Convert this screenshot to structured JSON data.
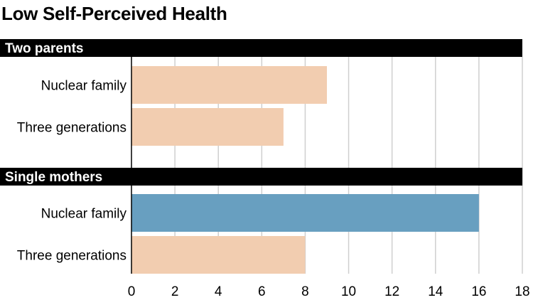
{
  "chart_data": {
    "type": "bar",
    "orientation": "horizontal",
    "title": "Low Self-Perceived Health",
    "xlim": [
      0,
      18
    ],
    "x_ticks": [
      0,
      2,
      4,
      6,
      8,
      10,
      12,
      14,
      16,
      18
    ],
    "grid": true,
    "groups": [
      {
        "label": "Two parents",
        "bars": [
          {
            "category": "Nuclear family",
            "value": 9,
            "color": "#f2cdb0"
          },
          {
            "category": "Three generations",
            "value": 7,
            "color": "#f2cdb0"
          }
        ]
      },
      {
        "label": "Single mothers",
        "bars": [
          {
            "category": "Nuclear family",
            "value": 16,
            "color": "#689fc0"
          },
          {
            "category": "Three generations",
            "value": 8,
            "color": "#f2cdb0"
          }
        ]
      }
    ],
    "colors": {
      "group_header_bg": "#000000",
      "group_header_text": "#ffffff",
      "gridline": "#cfcfcf",
      "axis": "#000000"
    }
  }
}
